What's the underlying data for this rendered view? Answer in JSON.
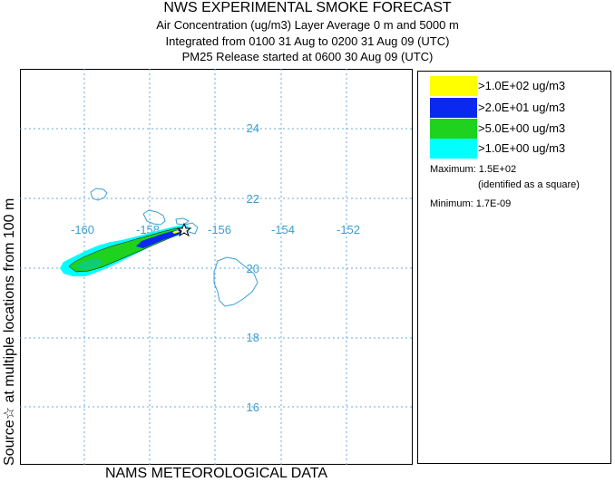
{
  "header": {
    "title": "NWS EXPERIMENTAL SMOKE FORECAST",
    "line1": "Air Concentration (ug/m3) Layer Average    0 m and  5000 m",
    "line2": "Integrated from 0100 31 Aug to 0200 31 Aug 09 (UTC)",
    "line3": "PM25 Release started at 0600 30 Aug 09 (UTC)"
  },
  "side_label": "Source☆    at multiple locations    from  100 m",
  "footer": "NAMS METEOROLOGICAL DATA",
  "map": {
    "longitude_labels": [
      "-160",
      "-158",
      "-156",
      "-154",
      "-152"
    ],
    "latitude_labels": [
      "24",
      "22",
      "20",
      "18",
      "16"
    ],
    "grid_color": "#5aa0d8",
    "label_color": "#3a9fd0",
    "coast_color": "#3aa0d8",
    "source_marker": "star-icon"
  },
  "legend": {
    "items": [
      {
        "label": ">1.0E+02 ug/m3",
        "color": "#ffff00"
      },
      {
        "label": ">2.0E+01 ug/m3",
        "color": "#0a28f0"
      },
      {
        "label": ">5.0E+00 ug/m3",
        "color": "#1ed21e"
      },
      {
        "label": ">1.0E+00 ug/m3",
        "color": "#00ffff"
      }
    ],
    "maximum": "Maximum: 1.5E+02",
    "maximum_note": "(identified as a square)",
    "minimum": "Minimum: 1.7E-09"
  }
}
